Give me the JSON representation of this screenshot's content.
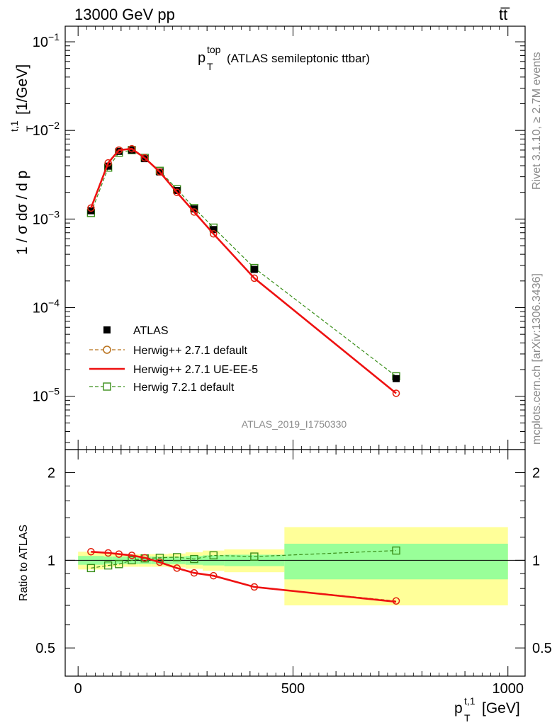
{
  "header": {
    "left": "13000 GeV pp",
    "right": "tt̅"
  },
  "side_text": {
    "top": "Rivet 3.1.10, ≥ 2.7M events",
    "bottom": "mcplots.cern.ch [arXiv:1306.3436]"
  },
  "watermark": "ATLAS_2019_I1750330",
  "main_title": {
    "main": "p",
    "sup": "top",
    "sub": "T",
    "rest": "(ATLAS semileptonic ttbar)"
  },
  "y_axis_label": "1 / σ dσ / d p",
  "y_axis_label_sup": "t,1",
  "y_axis_label_sub": "T",
  "y_axis_label_units": "[1/GeV]",
  "ratio_axis_label": "Ratio to ATLAS",
  "x_axis_label": {
    "main": "p",
    "sup": "t,1",
    "sub": "T",
    "units": "[GeV]"
  },
  "colors": {
    "atlas": "#000000",
    "herwigpp_default": "#b8701a",
    "herwigpp_ueee5": "#ee1111",
    "herwig7": "#3a8f1a",
    "band_inner": "#99ff99",
    "band_outer": "#ffff99"
  },
  "chart_data": [
    {
      "type": "scatter",
      "title": "p_T^top (ATLAS semileptonic ttbar)",
      "xlabel": "p_T^{t,1} [GeV]",
      "ylabel": "1 / σ dσ / d p_T^{t,1} [1/GeV]",
      "xlim": [
        -30,
        1040
      ],
      "ylim": [
        2.5e-06,
        0.15
      ],
      "yscale": "log",
      "y_ticks": [
        {
          "value": 0.1,
          "base": "10",
          "exp": "−1"
        },
        {
          "value": 0.01,
          "base": "10",
          "exp": "−2"
        },
        {
          "value": 0.001,
          "base": "10",
          "exp": "−3"
        },
        {
          "value": 0.0001,
          "base": "10",
          "exp": "−4"
        },
        {
          "value": 1e-05,
          "base": "10",
          "exp": "−5"
        }
      ],
      "x": [
        30,
        70,
        95,
        125,
        155,
        190,
        230,
        270,
        315,
        410,
        740
      ],
      "bin_edges": [
        0,
        60,
        80,
        110,
        140,
        170,
        210,
        250,
        290,
        340,
        480,
        1000
      ],
      "series": [
        {
          "name": "ATLAS",
          "key": "atlas",
          "style": "data",
          "values": [
            0.00124,
            0.00395,
            0.0058,
            0.006,
            0.0048,
            0.0034,
            0.0021,
            0.0013,
            0.00076,
            0.00027,
            1.58e-05
          ]
        },
        {
          "name": "Herwig++ 2.7.1 default",
          "key": "herwigpp_default",
          "style": "circle-dashed",
          "values": [
            0.00133,
            0.0043,
            0.006,
            0.0062,
            0.0049,
            0.0034,
            0.002,
            0.0012,
            0.00068,
            0.000215,
            1.08e-05
          ]
        },
        {
          "name": "Herwig++ 2.7.1 UE-EE-5",
          "key": "herwigpp_ueee5",
          "style": "solid",
          "values": [
            0.00133,
            0.0043,
            0.006,
            0.0062,
            0.0049,
            0.0034,
            0.002,
            0.0012,
            0.00068,
            0.000215,
            1.08e-05
          ]
        },
        {
          "name": "Herwig 7.2.1 default",
          "key": "herwig7",
          "style": "square-dashed",
          "values": [
            0.00117,
            0.0038,
            0.0056,
            0.006,
            0.0049,
            0.0035,
            0.00217,
            0.00133,
            0.0008,
            0.00028,
            1.68e-05
          ]
        }
      ]
    },
    {
      "type": "scatter",
      "title": "",
      "xlabel": "p_T^{t,1} [GeV]",
      "ylabel": "Ratio to ATLAS",
      "xlim": [
        -30,
        1040
      ],
      "ylim": [
        0.4,
        2.4
      ],
      "yscale": "log",
      "y_ticks": [
        {
          "value": 2,
          "label": "2"
        },
        {
          "value": 1,
          "label": "1"
        },
        {
          "value": 0.5,
          "label": "0.5"
        }
      ],
      "x_ticks": [
        {
          "value": 0,
          "label": "0"
        },
        {
          "value": 500,
          "label": "500"
        },
        {
          "value": 1000,
          "label": "1000"
        }
      ],
      "x": [
        30,
        70,
        95,
        125,
        155,
        190,
        230,
        270,
        315,
        410,
        740
      ],
      "bands": {
        "edges": [
          0,
          60,
          80,
          110,
          140,
          170,
          210,
          250,
          290,
          340,
          480,
          1000
        ],
        "inner": [
          0.035,
          0.03,
          0.03,
          0.03,
          0.03,
          0.03,
          0.03,
          0.035,
          0.04,
          0.045,
          0.14
        ],
        "outer": [
          0.07,
          0.055,
          0.05,
          0.05,
          0.05,
          0.05,
          0.055,
          0.065,
          0.08,
          0.09,
          0.3
        ]
      },
      "series": [
        {
          "name": "Herwig++ 2.7.1 default",
          "key": "herwigpp_default",
          "style": "circle-dashed",
          "values": [
            1.07,
            1.06,
            1.05,
            1.04,
            1.02,
            0.985,
            0.94,
            0.905,
            0.885,
            0.81,
            0.725
          ]
        },
        {
          "name": "Herwig++ 2.7.1 UE-EE-5",
          "key": "herwigpp_ueee5",
          "style": "solid",
          "values": [
            1.07,
            1.06,
            1.05,
            1.04,
            1.02,
            0.985,
            0.94,
            0.905,
            0.885,
            0.81,
            0.72
          ]
        },
        {
          "name": "Herwig 7.2.1 default",
          "key": "herwig7",
          "style": "square-dashed",
          "values": [
            0.94,
            0.96,
            0.97,
            1.0,
            1.015,
            1.02,
            1.025,
            1.01,
            1.04,
            1.03,
            1.08
          ]
        }
      ]
    }
  ]
}
